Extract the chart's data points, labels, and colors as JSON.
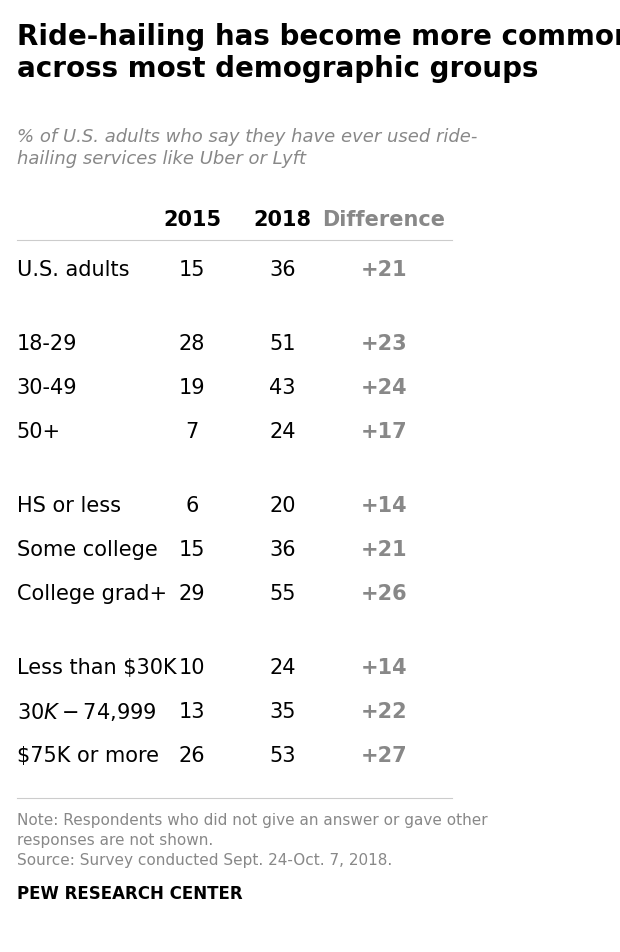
{
  "title": "Ride-hailing has become more common\nacross most demographic groups",
  "subtitle": "% of U.S. adults who say they have ever used ride-\nhailing services like Uber or Lyft",
  "col_headers": [
    "2015",
    "2018",
    "Difference"
  ],
  "rows": [
    {
      "label": "U.S. adults",
      "val2015": 15,
      "val2018": 36,
      "diff": "+21",
      "group": 0
    },
    {
      "label": "",
      "val2015": null,
      "val2018": null,
      "diff": null,
      "group": 1
    },
    {
      "label": "18-29",
      "val2015": 28,
      "val2018": 51,
      "diff": "+23",
      "group": 1
    },
    {
      "label": "30-49",
      "val2015": 19,
      "val2018": 43,
      "diff": "+24",
      "group": 1
    },
    {
      "label": "50+",
      "val2015": 7,
      "val2018": 24,
      "diff": "+17",
      "group": 1
    },
    {
      "label": "",
      "val2015": null,
      "val2018": null,
      "diff": null,
      "group": 2
    },
    {
      "label": "HS or less",
      "val2015": 6,
      "val2018": 20,
      "diff": "+14",
      "group": 2
    },
    {
      "label": "Some college",
      "val2015": 15,
      "val2018": 36,
      "diff": "+21",
      "group": 2
    },
    {
      "label": "College grad+",
      "val2015": 29,
      "val2018": 55,
      "diff": "+26",
      "group": 2
    },
    {
      "label": "",
      "val2015": null,
      "val2018": null,
      "diff": null,
      "group": 3
    },
    {
      "label": "Less than $30K",
      "val2015": 10,
      "val2018": 24,
      "diff": "+14",
      "group": 3
    },
    {
      "label": "$30K-$74,999",
      "val2015": 13,
      "val2018": 35,
      "diff": "+22",
      "group": 3
    },
    {
      "label": "$75K or more",
      "val2015": 26,
      "val2018": 53,
      "diff": "+27",
      "group": 3
    }
  ],
  "note": "Note: Respondents who did not give an answer or gave other\nresponses are not shown.\nSource: Survey conducted Sept. 24-Oct. 7, 2018.",
  "source": "PEW RESEARCH CENTER",
  "title_color": "#000000",
  "subtitle_color": "#888888",
  "label_color": "#000000",
  "value_color": "#000000",
  "diff_color": "#888888",
  "header_color": "#000000",
  "header_diff_color": "#888888",
  "note_color": "#888888",
  "source_color": "#000000",
  "bg_color": "#ffffff",
  "title_fontsize": 20,
  "subtitle_fontsize": 13,
  "header_fontsize": 15,
  "data_fontsize": 15,
  "note_fontsize": 11,
  "source_fontsize": 12
}
